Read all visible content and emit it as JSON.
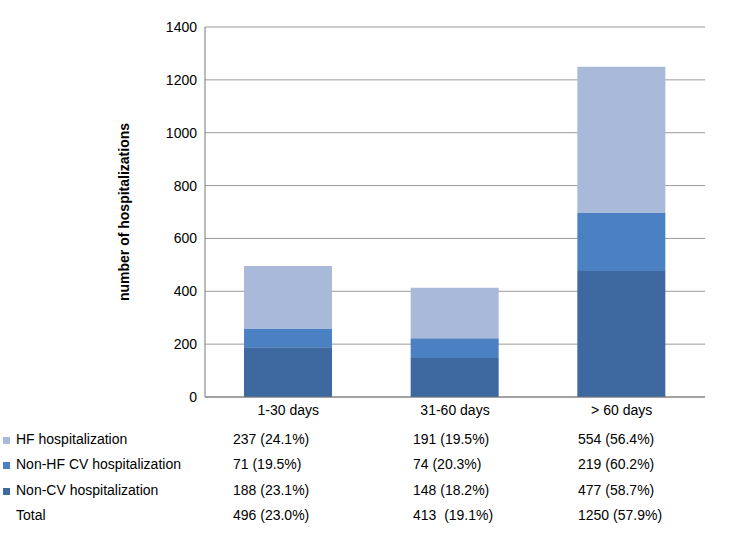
{
  "chart_data": {
    "type": "bar",
    "stacked": true,
    "grid": true,
    "y_label": "number of hospitalizations",
    "categories": [
      "1-30 days",
      "31-60 days",
      "> 60 days"
    ],
    "ylim": [
      0,
      1400
    ],
    "yticks": [
      0,
      200,
      400,
      600,
      800,
      1000,
      1200,
      1400
    ],
    "series": [
      {
        "name": "HF hospitalization",
        "color": "#a9b9da",
        "values": [
          237,
          191,
          554
        ],
        "table_cells": [
          "237 (24.1%)",
          "191 (19.5%)",
          "554 (56.4%)"
        ]
      },
      {
        "name": "Non-HF CV hospitalization",
        "color": "#4b81c2",
        "values": [
          71,
          74,
          219
        ],
        "table_cells": [
          "71 (19.5%)",
          "74 (20.3%)",
          "219 (60.2%)"
        ]
      },
      {
        "name": "Non-CV hospitalization",
        "color": "#3d68a0",
        "values": [
          188,
          148,
          477
        ],
        "table_cells": [
          "188 (23.1%)",
          "148 (18.2%)",
          "477 (58.7%)"
        ]
      }
    ],
    "total_row": {
      "name": "Total",
      "cells": [
        "496 (23.0%)",
        "413  (19.1%)",
        "1250 (57.9%)"
      ]
    }
  }
}
